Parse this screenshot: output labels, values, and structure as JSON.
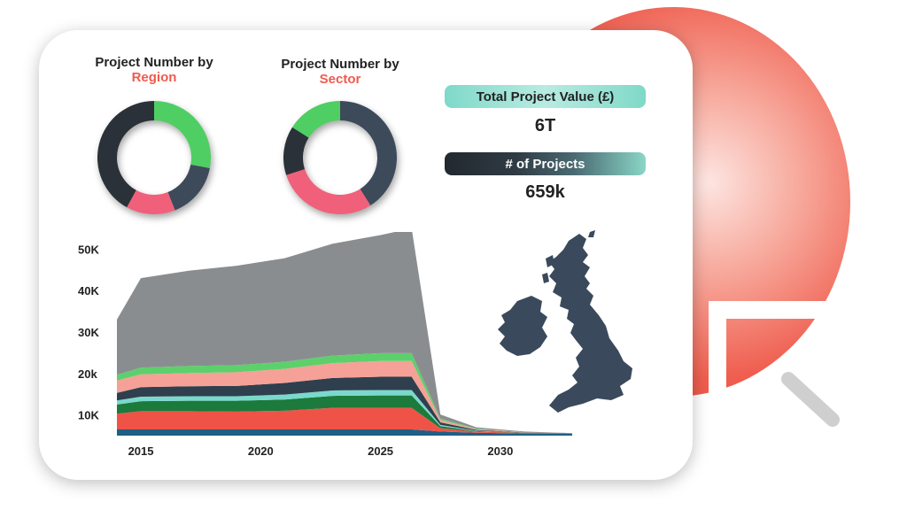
{
  "dashboard": {
    "region_title": "Project Number by",
    "region_accent": "Region",
    "sector_title": "Project Number by",
    "sector_accent": "Sector",
    "value_label": "Total Project Value (£)",
    "value_number": "6T",
    "count_label": "# of Projects",
    "count_number": "659k"
  },
  "colors": {
    "accent": "#f05a4f",
    "teal": "#7fd9c8",
    "dark": "#2a3138",
    "slate": "#3d4a5a",
    "green": "#4fce63",
    "pink": "#f0607a",
    "map": "#3a4a5c"
  },
  "chart_data": [
    {
      "type": "pie",
      "title": "Project Number by Region",
      "donut": true,
      "slices": [
        {
          "value": 28,
          "color": "#4fce63"
        },
        {
          "value": 16,
          "color": "#3d4a5a"
        },
        {
          "value": 14,
          "color": "#f0607a"
        },
        {
          "value": 42,
          "color": "#2a3138"
        }
      ]
    },
    {
      "type": "pie",
      "title": "Project Number by Sector",
      "donut": true,
      "slices": [
        {
          "value": 41,
          "color": "#3d4a5a"
        },
        {
          "value": 29,
          "color": "#f0607a"
        },
        {
          "value": 14,
          "color": "#2a3138"
        },
        {
          "value": 16,
          "color": "#4fce63"
        }
      ]
    },
    {
      "type": "area",
      "stacked": true,
      "x": [
        2014,
        2015,
        2017,
        2019,
        2021,
        2023,
        2025,
        2026.3,
        2027.5,
        2029,
        2031,
        2033
      ],
      "xticks": [
        "2015",
        "2020",
        "2025",
        "2030"
      ],
      "xtick_values": [
        2015,
        2020,
        2025,
        2030
      ],
      "yticks": [
        "10K",
        "20k",
        "30K",
        "40K",
        "50K"
      ],
      "ytick_values": [
        10000,
        20000,
        30000,
        40000,
        50000
      ],
      "ylim": [
        5000,
        52000
      ],
      "series": [
        {
          "color": "#1f5f86",
          "values": [
            1500,
            1500,
            1500,
            1500,
            1500,
            1500,
            1500,
            1500,
            1000,
            700,
            500,
            500
          ]
        },
        {
          "color": "#ef5347",
          "values": [
            3800,
            4400,
            4400,
            4300,
            4500,
            5200,
            5200,
            5200,
            800,
            300,
            150,
            100
          ]
        },
        {
          "color": "#1c7a3c",
          "values": [
            2200,
            2400,
            2500,
            2600,
            2700,
            2900,
            3000,
            3000,
            500,
            100,
            50,
            0
          ]
        },
        {
          "color": "#7ad9cc",
          "values": [
            1000,
            1100,
            1100,
            1100,
            1200,
            1300,
            1300,
            1300,
            300,
            100,
            0,
            0
          ]
        },
        {
          "color": "#2f3f4d",
          "values": [
            1800,
            2300,
            2400,
            2500,
            2800,
            3000,
            3200,
            3200,
            600,
            200,
            50,
            0
          ]
        },
        {
          "color": "#f5a197",
          "values": [
            3000,
            3100,
            3200,
            3300,
            3400,
            3600,
            3800,
            3800,
            600,
            200,
            50,
            0
          ]
        },
        {
          "color": "#5dd06b",
          "values": [
            1400,
            1600,
            1700,
            1700,
            1700,
            1800,
            1900,
            1900,
            300,
            100,
            0,
            0
          ]
        },
        {
          "color": "#8a8d90",
          "values": [
            13300,
            21600,
            23000,
            24000,
            25000,
            27000,
            28500,
            30100,
            1000,
            300,
            200,
            0
          ]
        }
      ]
    }
  ]
}
